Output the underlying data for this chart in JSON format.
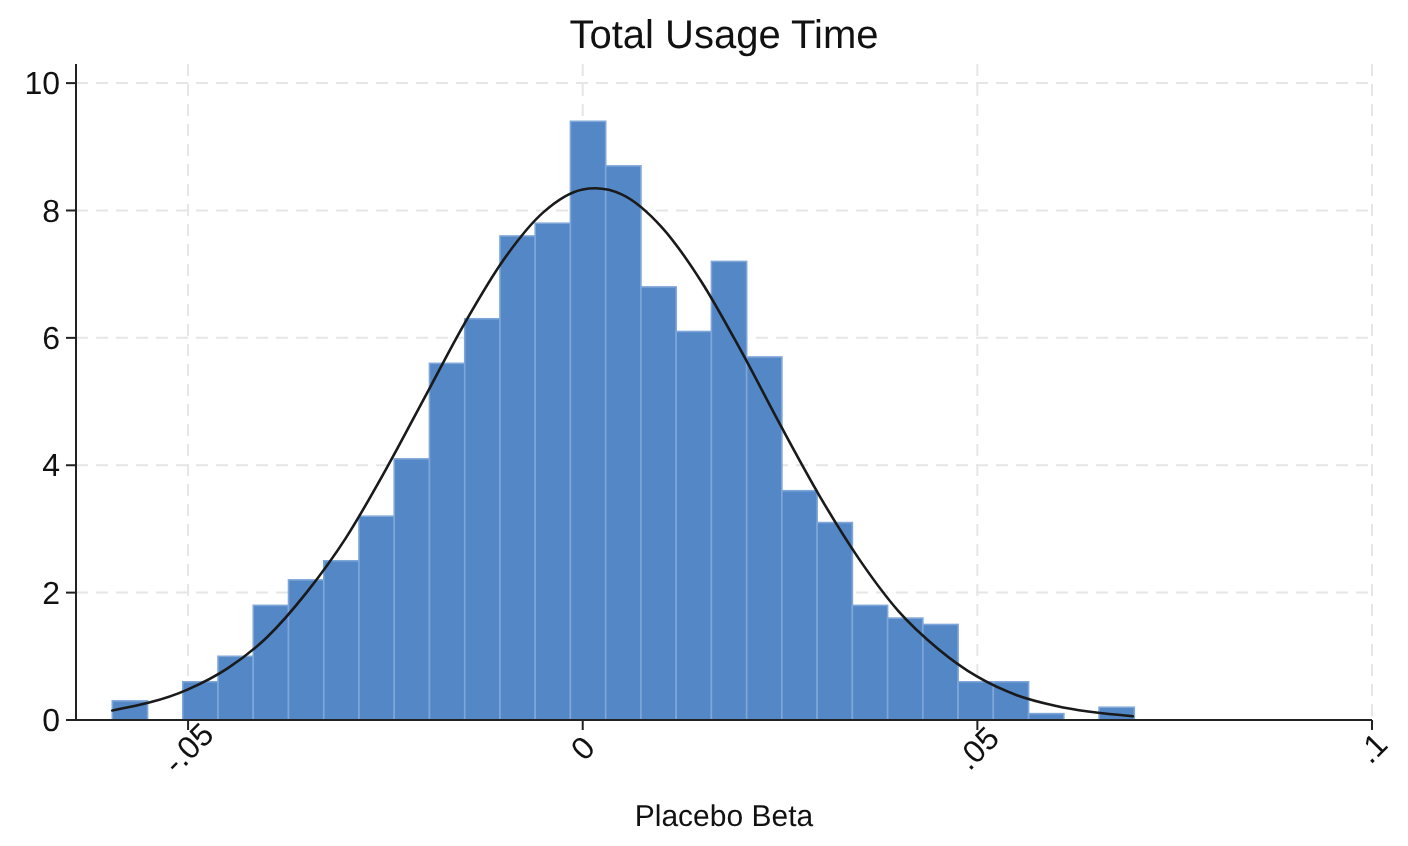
{
  "chart_data": {
    "type": "histogram",
    "title": "Total Usage Time",
    "xlabel": "Placebo Beta",
    "bins": [
      -0.0596,
      -0.055135,
      -0.05067,
      -0.046205,
      -0.04174,
      -0.037275,
      -0.03281,
      -0.028345,
      -0.02388,
      -0.019415,
      -0.01495,
      -0.010485,
      -0.00602,
      -0.001555,
      0.00291,
      0.007375,
      0.01184,
      0.016305,
      0.02077,
      0.025235,
      0.0297,
      0.034165,
      0.03863,
      0.043095,
      0.04756,
      0.052025,
      0.05649,
      0.060955,
      0.06542,
      0.069885
    ],
    "values": [
      0.3,
      0,
      0.6,
      1.0,
      1.8,
      2.2,
      2.5,
      3.2,
      4.1,
      5.6,
      6.3,
      7.6,
      7.8,
      9.4,
      8.7,
      6.8,
      6.1,
      7.2,
      5.7,
      3.6,
      3.1,
      1.8,
      1.6,
      1.5,
      0.6,
      0.6,
      0.1,
      0,
      0.2
    ],
    "color": "#5387c6",
    "series": [
      {
        "type": "line",
        "color": "#1a1a1a",
        "x": [
          -0.0596,
          -0.05,
          -0.045,
          -0.04,
          -0.035,
          -0.03,
          -0.025,
          -0.02,
          -0.015,
          -0.01,
          -0.005,
          0,
          0.0016,
          0.005,
          0.01,
          0.015,
          0.02,
          0.025,
          0.03,
          0.035,
          0.04,
          0.045,
          0.05,
          0.055,
          0.06,
          0.0697
        ],
        "values": [
          0.15,
          0.48,
          0.81,
          1.3,
          2.0,
          2.86,
          3.92,
          5.07,
          6.22,
          7.23,
          7.97,
          8.33,
          8.35,
          8.25,
          7.74,
          6.89,
          5.81,
          4.64,
          3.52,
          2.53,
          1.71,
          1.12,
          0.68,
          0.39,
          0.22,
          0.06
        ]
      }
    ],
    "xlim": [
      -0.0642,
      0.1
    ],
    "xticks": [
      {
        "value": -0.05,
        "label": "-.05"
      },
      0,
      {
        "value": 0.05,
        "label": ".05"
      },
      {
        "value": 0.1,
        "label": ".1"
      }
    ],
    "ylim": [
      0,
      10.3
    ],
    "yticks": [
      0,
      2,
      4,
      6,
      8,
      10
    ],
    "grid": true
  }
}
